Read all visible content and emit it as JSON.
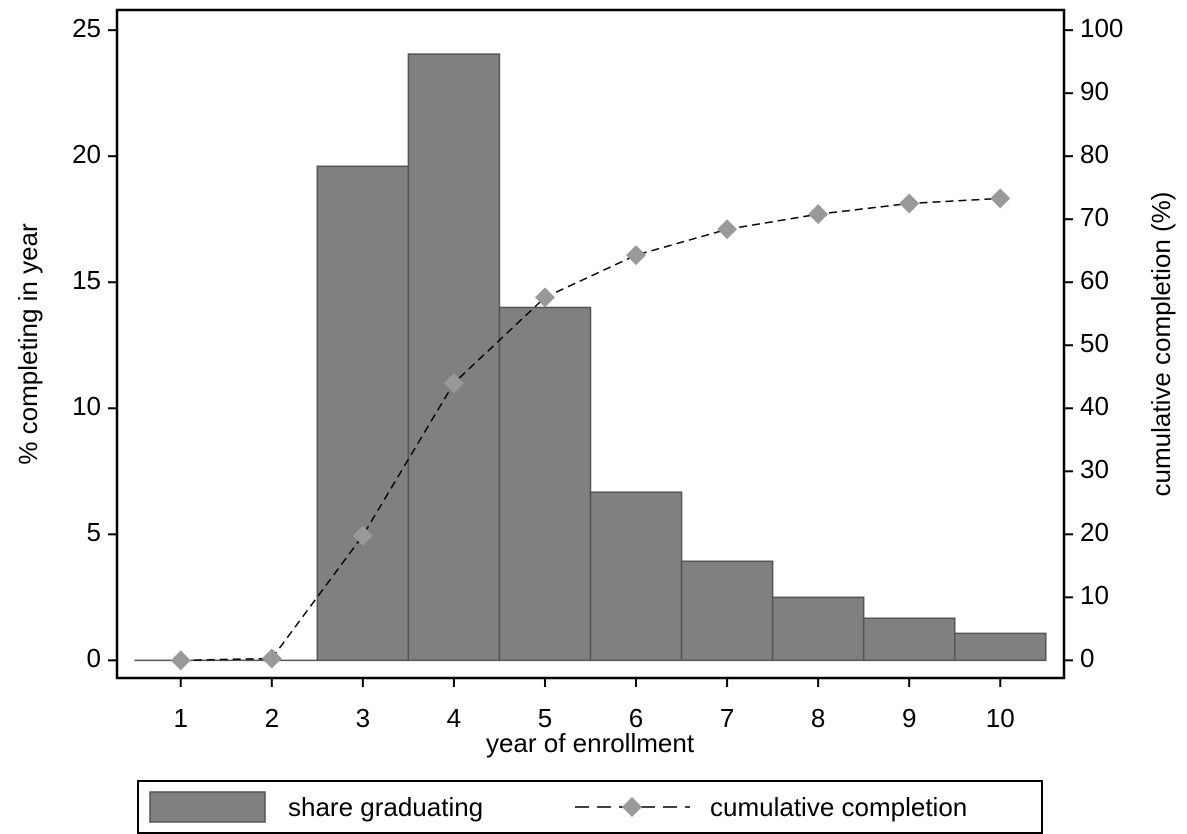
{
  "chart_data": {
    "type": "bar",
    "x_label": "year of enrollment",
    "y_label": "% completing in year",
    "y2_label": "cumulative completion (%)",
    "categories": [
      1,
      2,
      3,
      4,
      5,
      6,
      7,
      8,
      9,
      10
    ],
    "series": [
      {
        "name": "share graduating",
        "type": "bar",
        "color": "#808080",
        "values": [
          0,
          0,
          19.6,
          24.05,
          14.0,
          6.67,
          3.93,
          2.5,
          1.67,
          1.07
        ]
      },
      {
        "name": "cumulative completion",
        "type": "line",
        "axis": "y2",
        "color": "#999999",
        "values": [
          0,
          0.3,
          19.8,
          44.0,
          57.6,
          64.3,
          68.4,
          70.8,
          72.5,
          73.3
        ]
      }
    ],
    "xlim": [
      0.3,
      10.7
    ],
    "xticks": [
      1,
      2,
      3,
      4,
      5,
      6,
      7,
      8,
      9,
      10
    ],
    "ylim": [
      -0.7,
      25.8
    ],
    "yticks": [
      0,
      5,
      10,
      15,
      20,
      25
    ],
    "y2lim": [
      -2.8,
      103.2
    ],
    "y2ticks": [
      0,
      10,
      20,
      30,
      40,
      50,
      60,
      70,
      80,
      90,
      100
    ],
    "legend": "bottom"
  }
}
